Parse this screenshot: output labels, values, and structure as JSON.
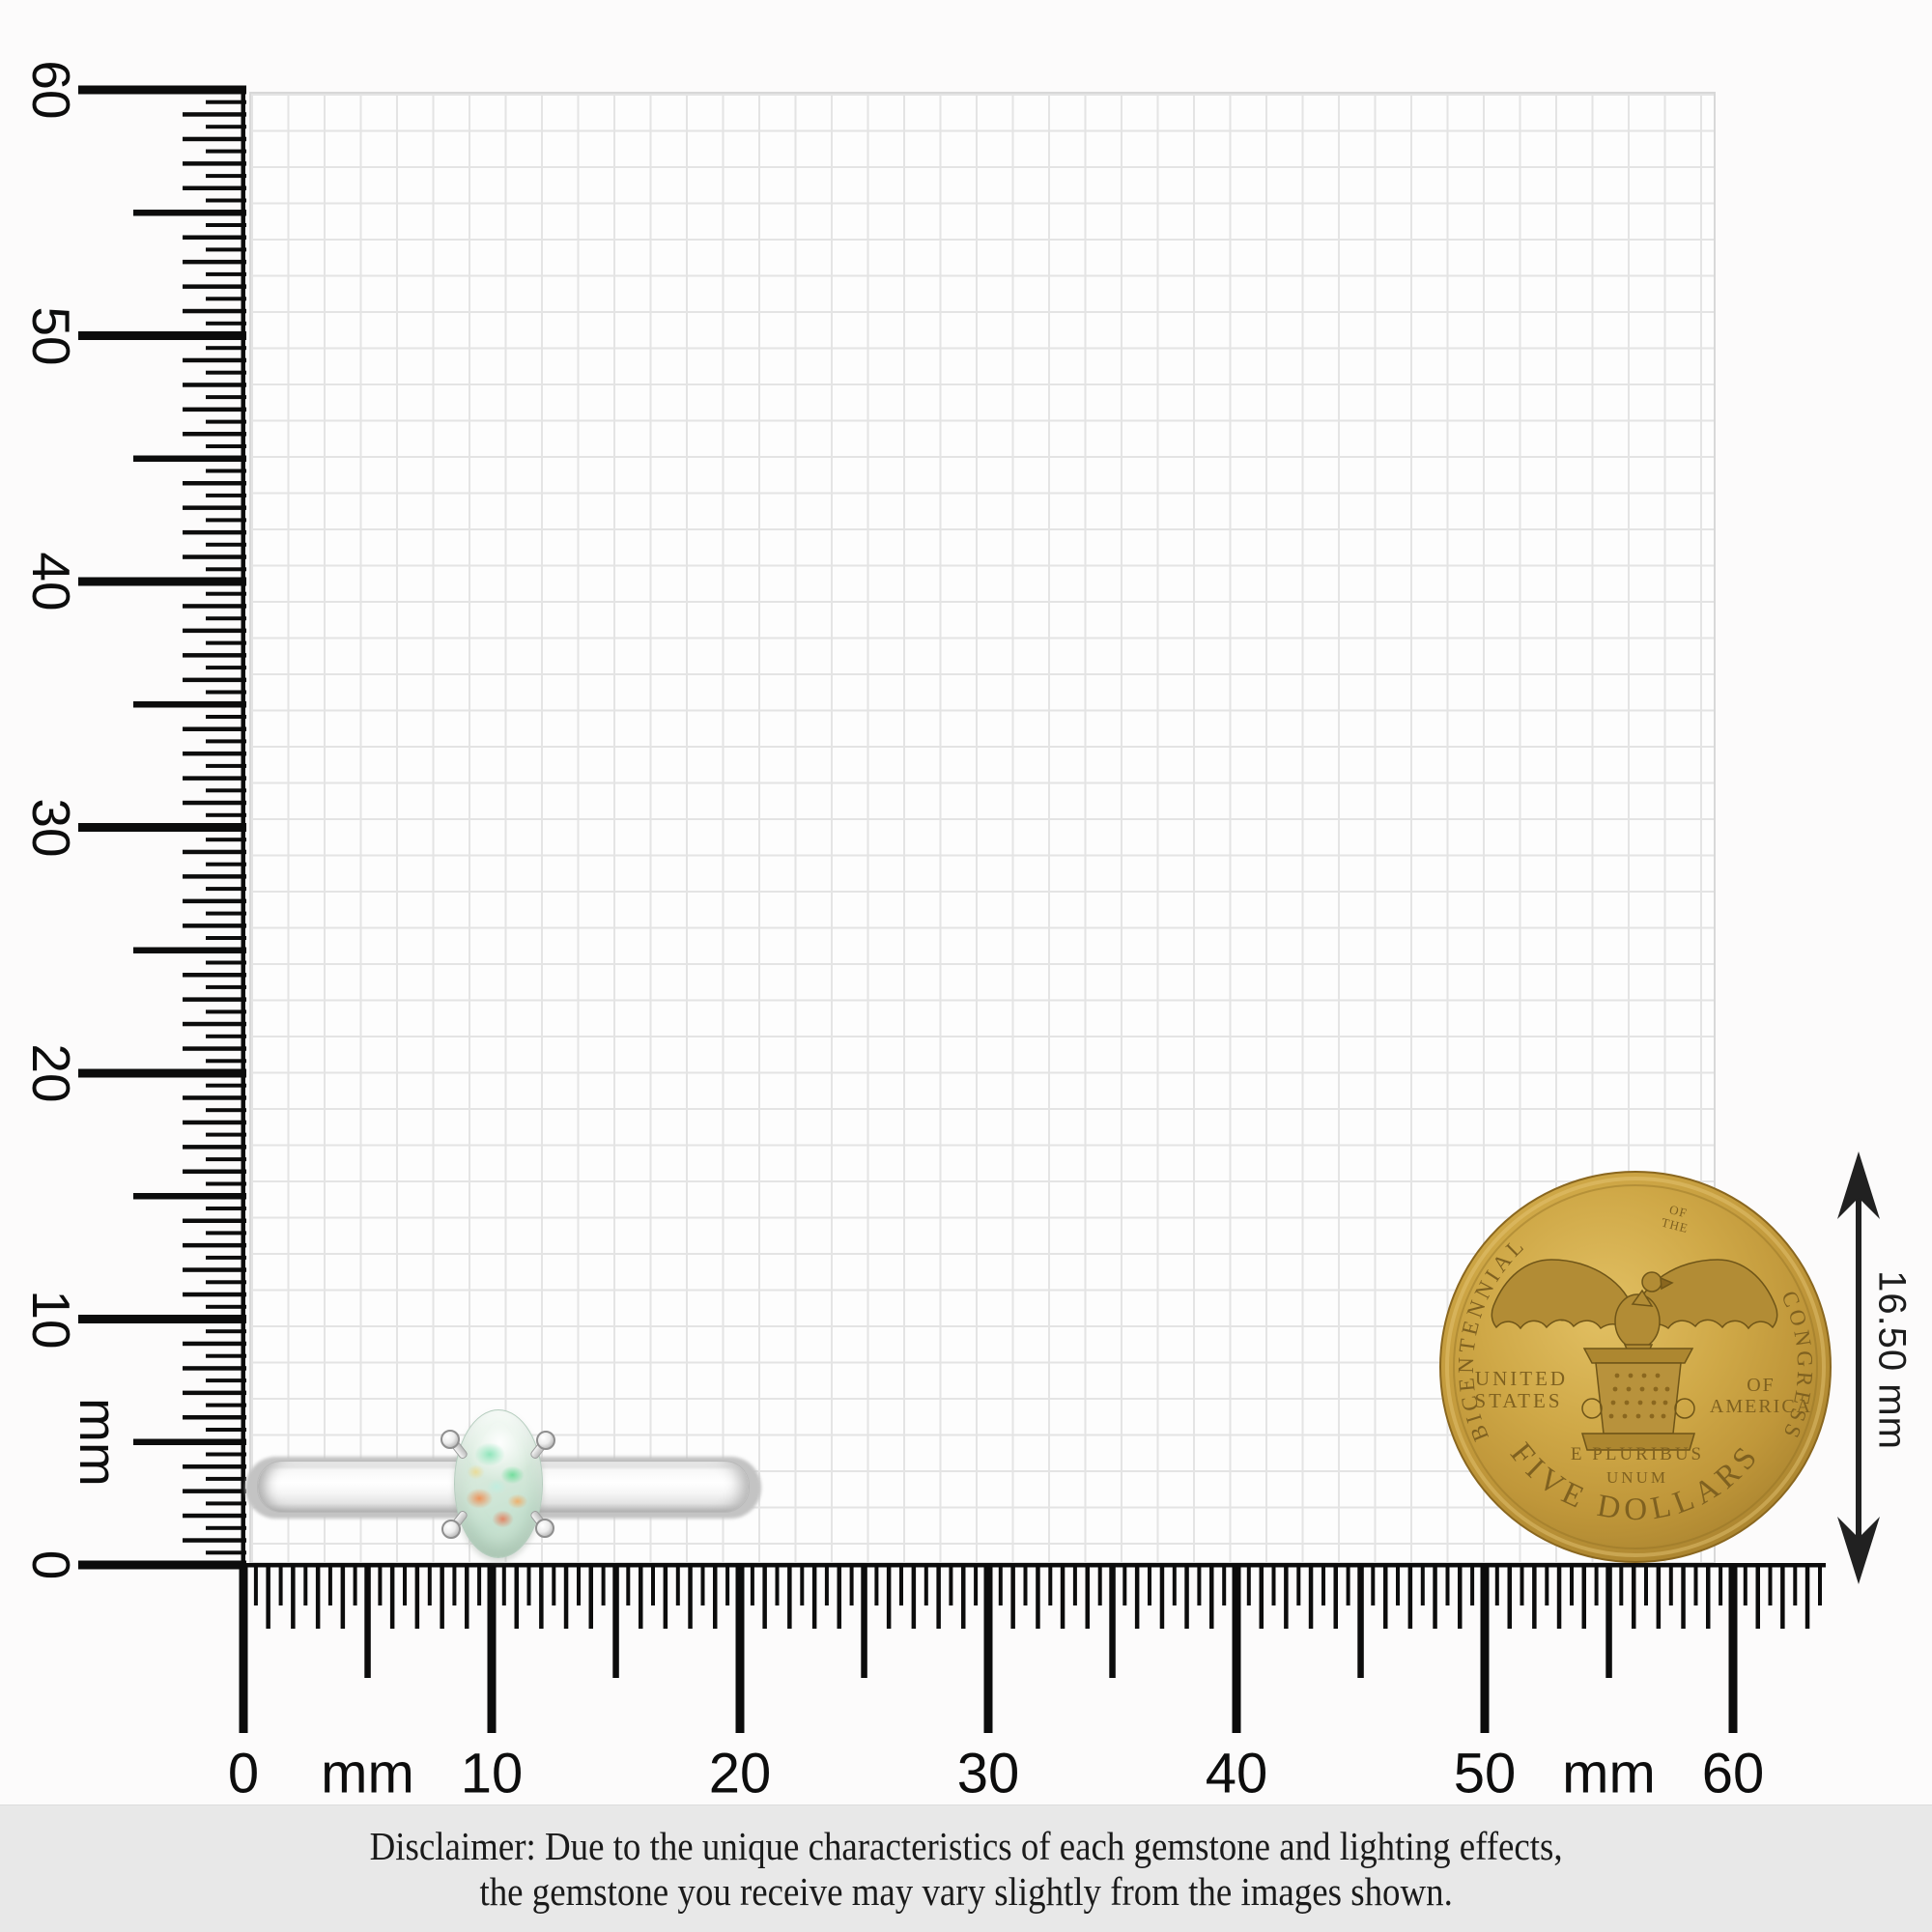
{
  "page": {
    "background": "#fcfbfb",
    "grid_line_color": "#e4e4e4"
  },
  "rulers": {
    "unit": "mm",
    "horizontal": {
      "labels": [
        "0",
        "10",
        "20",
        "30",
        "40",
        "50",
        "60"
      ],
      "label_values": [
        0,
        10,
        20,
        30,
        40,
        50,
        60
      ],
      "unit_label": "mm",
      "unit_positions_mm": [
        5,
        55
      ]
    },
    "vertical": {
      "labels": [
        "0",
        "10",
        "20",
        "30",
        "40",
        "50",
        "60"
      ],
      "label_values": [
        0,
        10,
        20,
        30,
        40,
        50,
        60
      ],
      "unit_label": "mm",
      "unit_positions_mm": [
        5
      ]
    }
  },
  "measurement": {
    "label": "16.50 mm"
  },
  "coin": {
    "arc_top_left": "BICENTENNIAL",
    "arc_small_line1": "OF",
    "arc_small_line2": "THE",
    "arc_top_right": "CONGRESS",
    "left_line1": "UNITED",
    "left_line2": "STATES",
    "right_line1": "OF",
    "right_line2": "AMERICA",
    "motto_line1": "E PLURIBUS",
    "motto_line2": "UNUM",
    "arc_bottom": "FIVE DOLLARS",
    "gold_color": "#c9a23f"
  },
  "ring": {
    "gem": "opal",
    "metal_color": "#f4f4f4",
    "gem_base_color": "#d6e9db",
    "gem_accent_colors": [
      "#6edd9a",
      "#f08e52",
      "#ea6a44",
      "#f4d477",
      "#bfeee0"
    ]
  },
  "disclaimer": {
    "line1": "Disclaimer: Due to the unique characteristics of each gemstone and lighting effects,",
    "line2": "the gemstone you receive may vary slightly from the images shown."
  }
}
